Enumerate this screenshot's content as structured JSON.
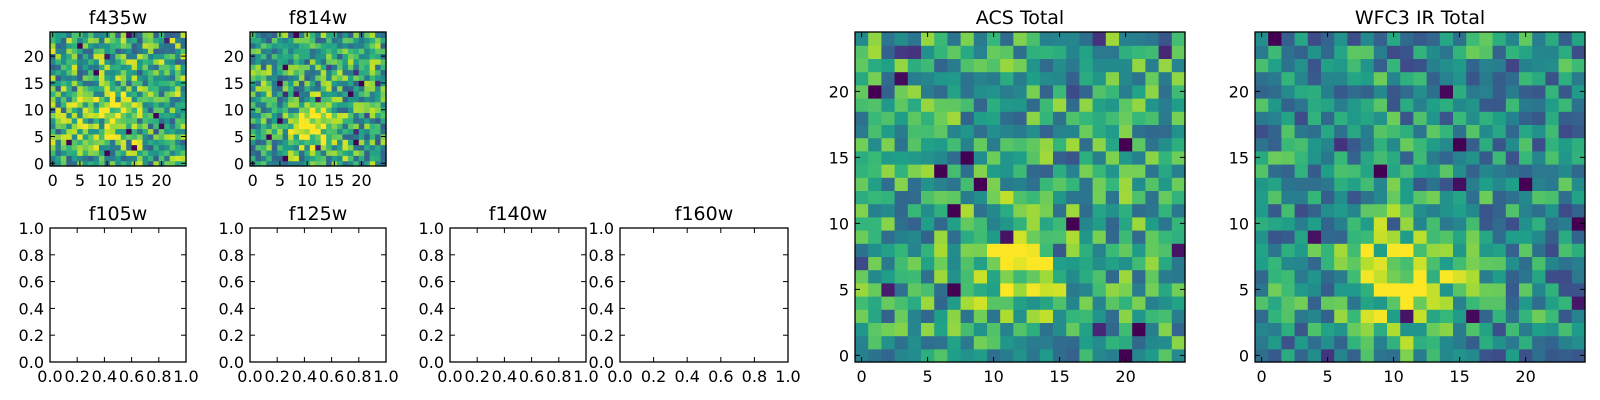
{
  "chart_data": [
    {
      "type": "heatmap",
      "title": "f435w",
      "xlabel": "",
      "ylabel": "",
      "xlim": [
        -0.5,
        24.5
      ],
      "ylim": [
        -0.5,
        24.5
      ],
      "xticks": [
        0,
        5,
        10,
        15,
        20
      ],
      "yticks": [
        0,
        5,
        10,
        15,
        20
      ],
      "image": {
        "size": 25,
        "seed": 11,
        "peak": [
          11,
          9
        ],
        "sigma": 3.2,
        "amp": 0.25,
        "noise": 0.34,
        "base": 0.62
      },
      "colormap": "viridis",
      "grid": false
    },
    {
      "type": "heatmap",
      "title": "f814w",
      "xlabel": "",
      "ylabel": "",
      "xlim": [
        -0.5,
        24.5
      ],
      "ylim": [
        -0.5,
        24.5
      ],
      "xticks": [
        0,
        5,
        10,
        15,
        20
      ],
      "yticks": [
        0,
        5,
        10,
        15,
        20
      ],
      "image": {
        "size": 25,
        "seed": 23,
        "peak": [
          11,
          7
        ],
        "sigma": 2.8,
        "amp": 0.45,
        "noise": 0.32,
        "base": 0.6
      },
      "colormap": "viridis",
      "grid": false
    },
    {
      "type": "scatter",
      "title": "f105w",
      "xlabel": "",
      "ylabel": "",
      "xlim": [
        0,
        1
      ],
      "ylim": [
        0,
        1
      ],
      "xticks": [
        "0.0",
        "0.2",
        "0.4",
        "0.6",
        "0.8",
        "1.0"
      ],
      "yticks": [
        "0.0",
        "0.2",
        "0.4",
        "0.6",
        "0.8",
        "1.0"
      ],
      "series": []
    },
    {
      "type": "scatter",
      "title": "f125w",
      "xlabel": "",
      "ylabel": "",
      "xlim": [
        0,
        1
      ],
      "ylim": [
        0,
        1
      ],
      "xticks": [
        "0.0",
        "0.2",
        "0.4",
        "0.6",
        "0.8",
        "1.0"
      ],
      "yticks": [
        "0.0",
        "0.2",
        "0.4",
        "0.6",
        "0.8",
        "1.0"
      ],
      "series": []
    },
    {
      "type": "scatter",
      "title": "f140w",
      "xlabel": "",
      "ylabel": "",
      "xlim": [
        0,
        1
      ],
      "ylim": [
        0,
        1
      ],
      "xticks": [
        "0.0",
        "0.2",
        "0.4",
        "0.6",
        "0.8",
        "1.0"
      ],
      "yticks": [
        "0.0",
        "0.2",
        "0.4",
        "0.6",
        "0.8",
        "1.0"
      ],
      "series": []
    },
    {
      "type": "scatter",
      "title": "f160w",
      "xlabel": "",
      "ylabel": "",
      "xlim": [
        0,
        1
      ],
      "ylim": [
        0,
        1
      ],
      "xticks": [
        "0.0",
        "0.2",
        "0.4",
        "0.6",
        "0.8",
        "1.0"
      ],
      "yticks": [
        "0.0",
        "0.2",
        "0.4",
        "0.6",
        "0.8",
        "1.0"
      ],
      "series": []
    },
    {
      "type": "heatmap",
      "title": "ACS Total",
      "xlabel": "",
      "ylabel": "",
      "xlim": [
        -0.5,
        24.5
      ],
      "ylim": [
        -0.5,
        24.5
      ],
      "xticks": [
        0,
        5,
        10,
        15,
        20
      ],
      "yticks": [
        0,
        5,
        10,
        15,
        20
      ],
      "image": {
        "size": 25,
        "seed": 37,
        "peak": [
          12,
          7
        ],
        "sigma": 2.6,
        "amp": 0.35,
        "noise": 0.28,
        "base": 0.58
      },
      "colormap": "viridis",
      "grid": false
    },
    {
      "type": "heatmap",
      "title": "WFC3 IR Total",
      "xlabel": "",
      "ylabel": "",
      "xlim": [
        -0.5,
        24.5
      ],
      "ylim": [
        -0.5,
        24.5
      ],
      "xticks": [
        0,
        5,
        10,
        15,
        20
      ],
      "yticks": [
        0,
        5,
        10,
        15,
        20
      ],
      "image": {
        "size": 25,
        "seed": 53,
        "peak": [
          11,
          6
        ],
        "sigma": 3.0,
        "amp": 0.5,
        "noise": 0.28,
        "base": 0.5
      },
      "colormap": "viridis",
      "grid": false
    }
  ]
}
